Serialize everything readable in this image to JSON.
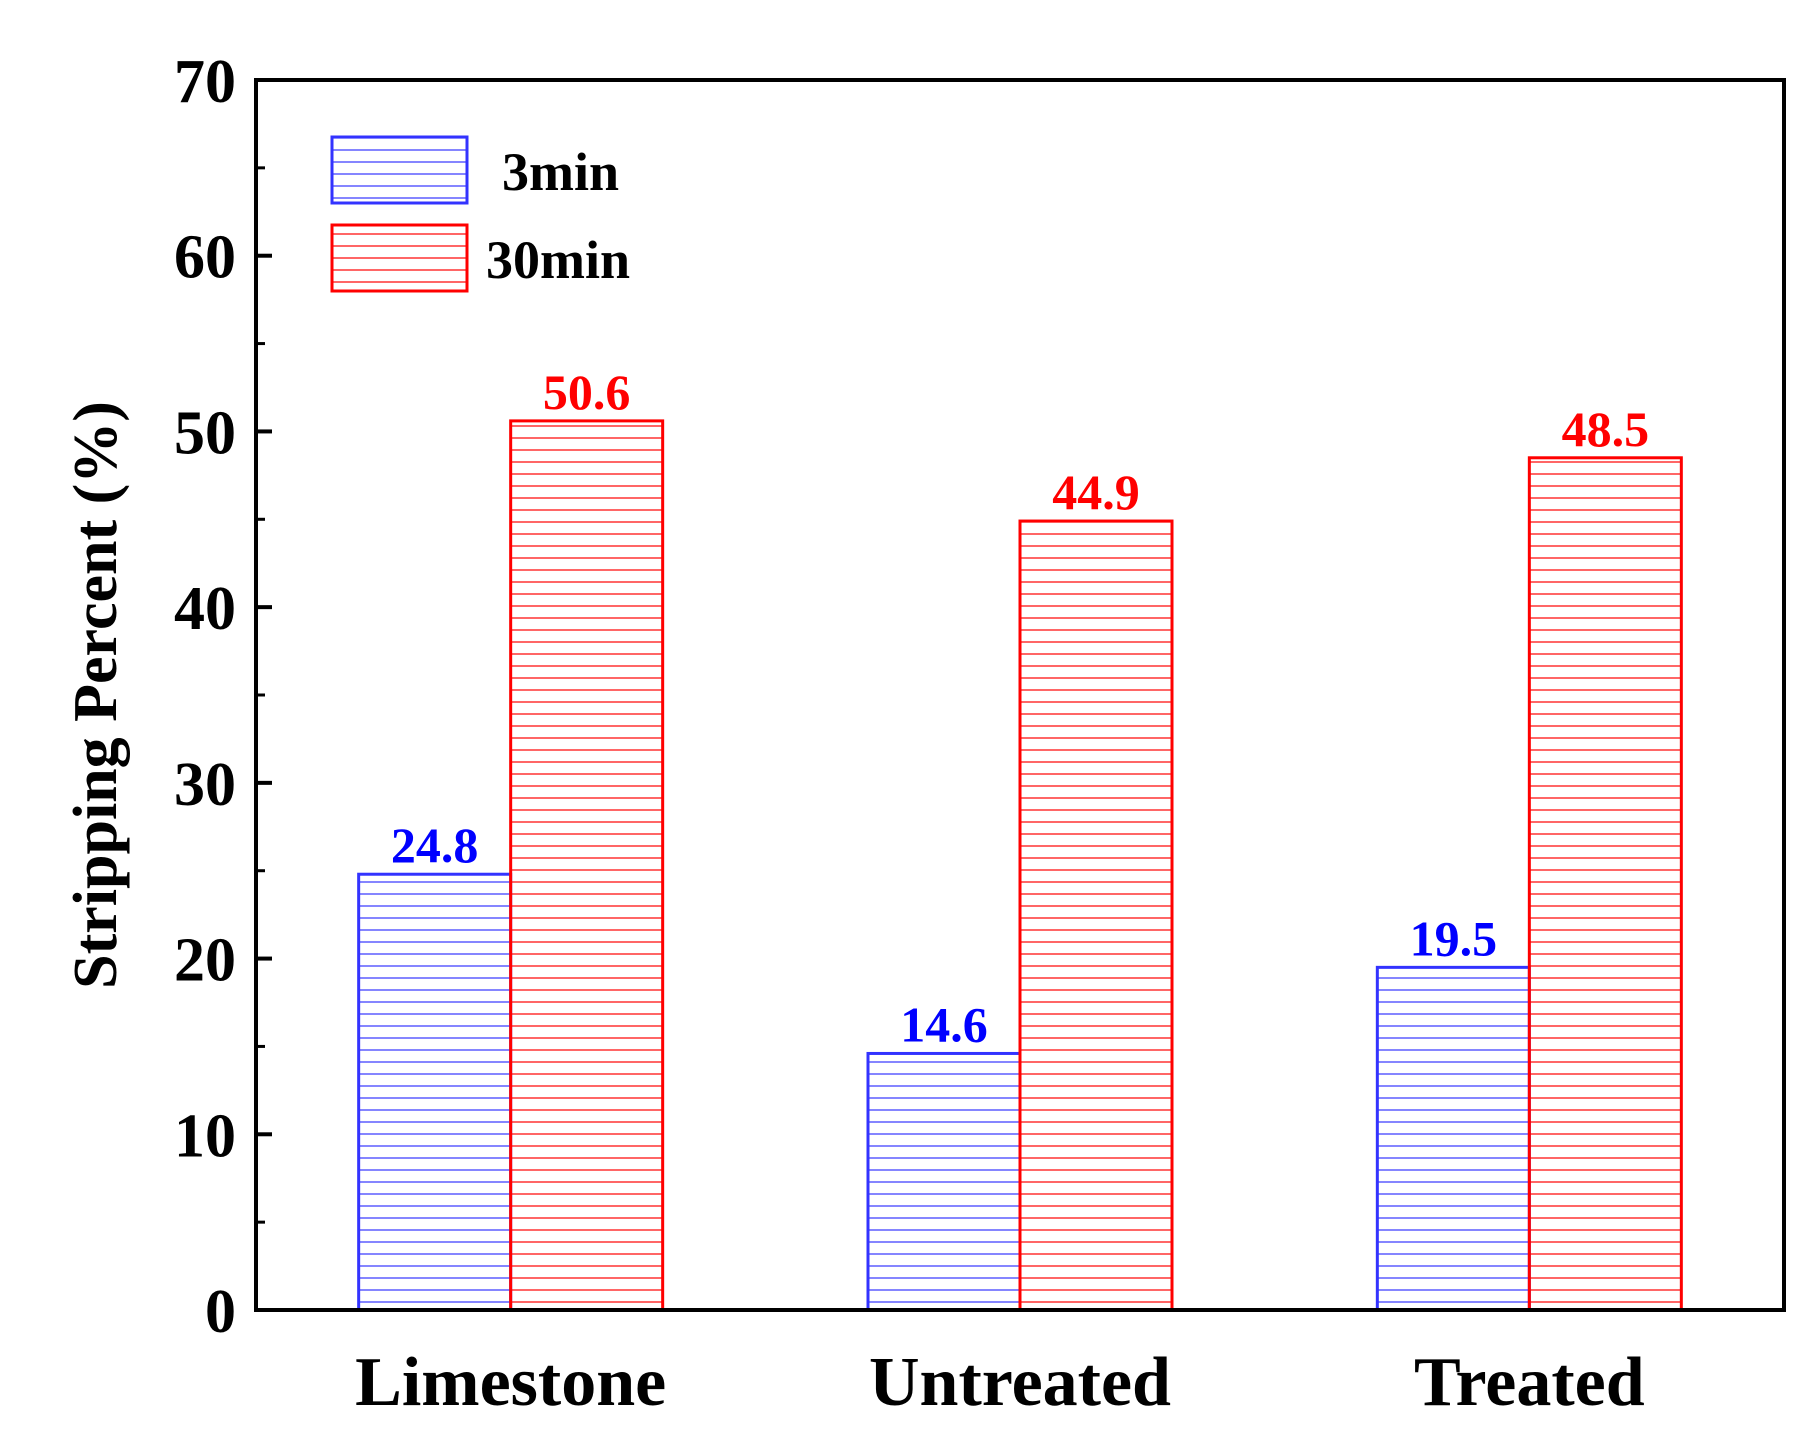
{
  "chart_data": {
    "type": "bar",
    "title": "",
    "xlabel": "",
    "ylabel": "Stripping Percent (%)",
    "ylim": [
      0,
      70
    ],
    "yticks": [
      0,
      10,
      20,
      30,
      40,
      50,
      60,
      70
    ],
    "categories": [
      "Limestone",
      "Untreated",
      "Treated"
    ],
    "series": [
      {
        "name": "3min",
        "values": [
          24.8,
          14.6,
          19.5
        ],
        "labels": [
          "24.8",
          "14.6",
          "19.5"
        ],
        "color": "#3333ff"
      },
      {
        "name": "30min",
        "values": [
          50.6,
          44.9,
          48.5
        ],
        "labels": [
          "50.6",
          "44.9",
          "48.5"
        ],
        "color": "#ff0000"
      }
    ],
    "legend": "top-left",
    "grid": false
  }
}
